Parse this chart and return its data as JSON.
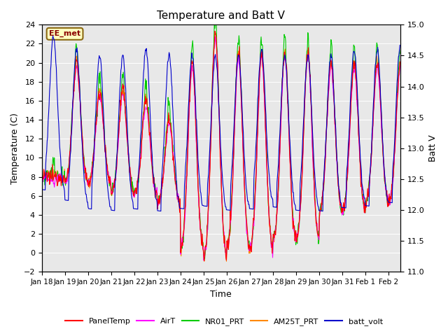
{
  "title": "Temperature and Batt V",
  "xlabel": "Time",
  "ylabel_left": "Temperature (C)",
  "ylabel_right": "Batt V",
  "ylim_left": [
    -2,
    24
  ],
  "ylim_right": [
    11.0,
    15.0
  ],
  "yticks_left": [
    -2,
    0,
    2,
    4,
    6,
    8,
    10,
    12,
    14,
    16,
    18,
    20,
    22,
    24
  ],
  "yticks_right": [
    11.0,
    11.5,
    12.0,
    12.5,
    13.0,
    13.5,
    14.0,
    14.5,
    15.0
  ],
  "annotation_text": "EE_met",
  "annotation_fg": "#8B0000",
  "annotation_bg": "#ffffc0",
  "annotation_edge": "#8B6914",
  "plot_bg_color": "#e8e8e8",
  "grid_color": "#cccccc",
  "legend_entries": [
    "PanelTemp",
    "AirT",
    "NR01_PRT",
    "AM25T_PRT",
    "batt_volt"
  ],
  "legend_colors": [
    "#ff0000",
    "#ff00ff",
    "#00cc00",
    "#ff8800",
    "#0000cc"
  ],
  "line_width": 0.8,
  "n_days": 15
}
